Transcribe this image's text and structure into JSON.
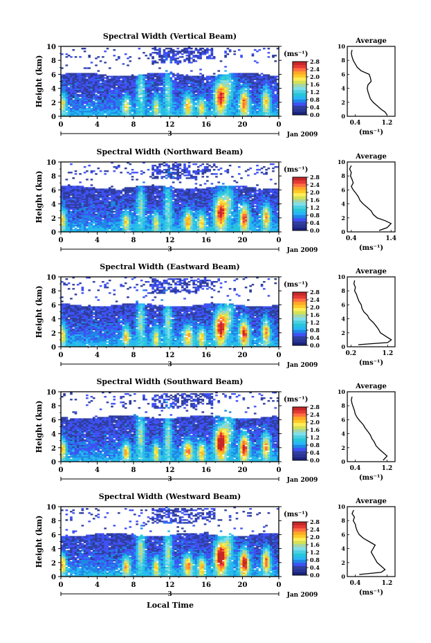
{
  "figure": {
    "xlabel": "Local Time",
    "date_label": "Jan 2009",
    "day_marker": "3",
    "colorbar_unit": "(ms⁻¹)",
    "average_title": "Average",
    "average_xlabel": "(ms⁻¹)",
    "ylabel": "Height (km)"
  },
  "colors": {
    "scale": [
      "#1a237e",
      "#283593",
      "#303f9f",
      "#3f51f5",
      "#1e88e5",
      "#29b6f6",
      "#26c6da",
      "#4dd0e1",
      "#80deea",
      "#a5d6a7",
      "#d4e157",
      "#ffee58",
      "#ffca28",
      "#ffa726",
      "#ff7043",
      "#e53935",
      "#c62828"
    ]
  },
  "chart_data": [
    {
      "type": "heatmap",
      "title": "Spectral Width (Vertical Beam)",
      "x_ticks": [
        "0",
        "4",
        "8",
        "12",
        "16",
        "20",
        "0"
      ],
      "y_ticks": [
        "0",
        "2",
        "4",
        "6",
        "8",
        "10"
      ],
      "xlim": [
        0,
        24
      ],
      "ylim": [
        0,
        10
      ],
      "colorbar_ticks": [
        "0.0",
        "0.4",
        "0.8",
        "1.2",
        "1.6",
        "2.0",
        "2.4",
        "2.8"
      ],
      "colorbar_range": [
        0,
        2.8
      ],
      "profile": {
        "x_ticks": [
          "0.4",
          "1.2"
        ],
        "xlim": [
          0.2,
          1.4
        ],
        "points": [
          [
            1.2,
            0.2
          ],
          [
            1.15,
            0.6
          ],
          [
            1.05,
            1.0
          ],
          [
            0.95,
            1.5
          ],
          [
            0.85,
            2.0
          ],
          [
            0.78,
            2.5
          ],
          [
            0.75,
            3.0
          ],
          [
            0.72,
            3.5
          ],
          [
            0.7,
            4.0
          ],
          [
            0.72,
            4.5
          ],
          [
            0.8,
            5.0
          ],
          [
            0.78,
            5.5
          ],
          [
            0.75,
            6.0
          ],
          [
            0.55,
            6.5
          ],
          [
            0.45,
            7.0
          ],
          [
            0.4,
            7.5
          ],
          [
            0.35,
            8.0
          ],
          [
            0.32,
            8.5
          ],
          [
            0.3,
            9.0
          ],
          [
            0.32,
            9.5
          ]
        ]
      }
    },
    {
      "type": "heatmap",
      "title": "Spectral Width (Northward Beam)",
      "x_ticks": [
        "0",
        "4",
        "8",
        "12",
        "16",
        "20",
        "0"
      ],
      "y_ticks": [
        "0",
        "2",
        "4",
        "6",
        "8",
        "10"
      ],
      "xlim": [
        0,
        24
      ],
      "ylim": [
        0,
        10
      ],
      "colorbar_ticks": [
        "0.0",
        "0.4",
        "0.8",
        "1.2",
        "1.6",
        "2.0",
        "2.4",
        "2.8"
      ],
      "colorbar_range": [
        0,
        2.8
      ],
      "profile": {
        "x_ticks": [
          "0.4",
          "1.4"
        ],
        "xlim": [
          0.3,
          1.5
        ],
        "points": [
          [
            1.1,
            0.2
          ],
          [
            1.3,
            0.6
          ],
          [
            1.4,
            1.2
          ],
          [
            1.25,
            1.6
          ],
          [
            1.05,
            2.0
          ],
          [
            0.95,
            2.5
          ],
          [
            0.9,
            3.0
          ],
          [
            0.8,
            3.5
          ],
          [
            0.7,
            4.0
          ],
          [
            0.62,
            4.5
          ],
          [
            0.58,
            5.0
          ],
          [
            0.52,
            5.5
          ],
          [
            0.45,
            6.0
          ],
          [
            0.4,
            6.5
          ],
          [
            0.45,
            7.0
          ],
          [
            0.42,
            7.5
          ],
          [
            0.38,
            8.0
          ],
          [
            0.4,
            8.5
          ],
          [
            0.36,
            9.0
          ],
          [
            0.4,
            9.5
          ]
        ]
      }
    },
    {
      "type": "heatmap",
      "title": "Spectral Width (Eastward Beam)",
      "x_ticks": [
        "0",
        "4",
        "8",
        "12",
        "16",
        "20",
        "0"
      ],
      "y_ticks": [
        "0",
        "2",
        "4",
        "6",
        "8",
        "10"
      ],
      "xlim": [
        0,
        24
      ],
      "ylim": [
        0,
        10
      ],
      "colorbar_ticks": [
        "0.0",
        "0.4",
        "0.8",
        "1.2",
        "1.6",
        "2.0",
        "2.4",
        "2.8"
      ],
      "colorbar_range": [
        0,
        2.8
      ],
      "profile": {
        "x_ticks": [
          "0.2",
          "1.2"
        ],
        "xlim": [
          0.1,
          1.4
        ],
        "points": [
          [
            0.4,
            0.3
          ],
          [
            1.2,
            0.6
          ],
          [
            1.3,
            1.0
          ],
          [
            1.15,
            1.5
          ],
          [
            1.0,
            2.0
          ],
          [
            0.95,
            2.5
          ],
          [
            0.88,
            3.0
          ],
          [
            0.8,
            3.5
          ],
          [
            0.7,
            4.0
          ],
          [
            0.65,
            4.5
          ],
          [
            0.55,
            5.0
          ],
          [
            0.5,
            5.5
          ],
          [
            0.48,
            6.0
          ],
          [
            0.42,
            6.5
          ],
          [
            0.38,
            7.0
          ],
          [
            0.35,
            7.5
          ],
          [
            0.3,
            8.0
          ],
          [
            0.32,
            8.5
          ],
          [
            0.28,
            9.0
          ],
          [
            0.3,
            9.5
          ]
        ]
      }
    },
    {
      "type": "heatmap",
      "title": "Spectral Width (Southward Beam)",
      "x_ticks": [
        "0",
        "4",
        "8",
        "12",
        "16",
        "20",
        "0"
      ],
      "y_ticks": [
        "0",
        "2",
        "4",
        "6",
        "8",
        "10"
      ],
      "xlim": [
        0,
        24
      ],
      "ylim": [
        0,
        10
      ],
      "colorbar_ticks": [
        "0.0",
        "0.4",
        "0.8",
        "1.2",
        "1.6",
        "2.0",
        "2.4",
        "2.8"
      ],
      "colorbar_range": [
        0,
        2.8
      ],
      "profile": {
        "x_ticks": [
          "0.4",
          "1.2"
        ],
        "xlim": [
          0.2,
          1.4
        ],
        "points": [
          [
            1.1,
            0.2
          ],
          [
            1.2,
            0.8
          ],
          [
            1.1,
            1.3
          ],
          [
            1.0,
            1.8
          ],
          [
            0.92,
            2.3
          ],
          [
            0.88,
            2.8
          ],
          [
            0.82,
            3.3
          ],
          [
            0.78,
            3.8
          ],
          [
            0.72,
            4.3
          ],
          [
            0.65,
            4.8
          ],
          [
            0.6,
            5.3
          ],
          [
            0.52,
            5.8
          ],
          [
            0.45,
            6.3
          ],
          [
            0.4,
            6.8
          ],
          [
            0.38,
            7.3
          ],
          [
            0.35,
            7.8
          ],
          [
            0.32,
            8.3
          ],
          [
            0.3,
            8.8
          ],
          [
            0.32,
            9.3
          ]
        ]
      }
    },
    {
      "type": "heatmap",
      "title": "Spectral Width (Westward Beam)",
      "x_ticks": [
        "0",
        "4",
        "8",
        "12",
        "16",
        "20",
        "0"
      ],
      "y_ticks": [
        "0",
        "2",
        "4",
        "6",
        "8",
        "10"
      ],
      "xlim": [
        0,
        24
      ],
      "ylim": [
        0,
        10
      ],
      "colorbar_ticks": [
        "0.0",
        "0.4",
        "0.8",
        "1.2",
        "1.6",
        "2.0",
        "2.4",
        "2.8"
      ],
      "colorbar_range": [
        0,
        2.8
      ],
      "profile": {
        "x_ticks": [
          "0.4",
          "1.2"
        ],
        "xlim": [
          0.2,
          1.4
        ],
        "points": [
          [
            0.5,
            0.3
          ],
          [
            1.05,
            0.6
          ],
          [
            1.15,
            1.0
          ],
          [
            1.05,
            1.5
          ],
          [
            0.95,
            2.0
          ],
          [
            0.9,
            2.5
          ],
          [
            0.85,
            3.0
          ],
          [
            0.8,
            3.5
          ],
          [
            0.85,
            4.0
          ],
          [
            0.9,
            4.5
          ],
          [
            0.75,
            5.0
          ],
          [
            0.6,
            5.5
          ],
          [
            0.5,
            6.0
          ],
          [
            0.45,
            6.5
          ],
          [
            0.42,
            7.0
          ],
          [
            0.4,
            7.5
          ],
          [
            0.35,
            8.0
          ],
          [
            0.38,
            8.5
          ],
          [
            0.32,
            9.0
          ],
          [
            0.36,
            9.5
          ]
        ]
      }
    }
  ]
}
